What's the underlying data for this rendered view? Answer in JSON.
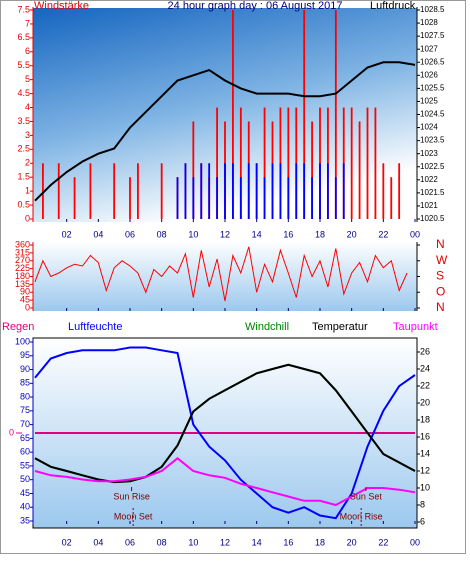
{
  "chart_data": [
    {
      "type": "bar",
      "title": "24 hour graph day : 06 August 2017",
      "y_label": "Windstärke",
      "y2_label": "Luftdruck",
      "x": [
        0,
        0.5,
        1,
        1.5,
        2,
        2.5,
        3,
        3.5,
        4,
        4.5,
        5,
        5.5,
        6,
        6.5,
        7,
        7.5,
        8,
        8.5,
        9,
        9.5,
        10,
        10.5,
        11,
        11.5,
        12,
        12.5,
        13,
        13.5,
        14,
        14.5,
        15,
        15.5,
        16,
        16.5,
        17,
        17.5,
        18,
        18.5,
        19,
        19.5,
        20,
        20.5,
        21,
        21.5,
        22,
        22.5,
        23,
        23.5
      ],
      "xlim": [
        0,
        24
      ],
      "xticks": [
        {
          "value": 2,
          "label": "02"
        },
        {
          "value": 4,
          "label": "04"
        },
        {
          "value": 6,
          "label": "06"
        },
        {
          "value": 8,
          "label": "08"
        },
        10,
        12,
        14,
        16,
        18,
        20,
        22,
        {
          "value": 24,
          "label": "00"
        }
      ],
      "ylim": [
        0,
        7.5
      ],
      "yticks": [
        0,
        0.5,
        1,
        1.5,
        2,
        2.5,
        3,
        3.5,
        4,
        4.5,
        5,
        5.5,
        6,
        6.5,
        7,
        7.5
      ],
      "y2lim": [
        1020.5,
        1028.5
      ],
      "y2ticks": [
        1020.5,
        1021,
        1021.5,
        1022,
        1022.5,
        1023,
        1023.5,
        1024,
        1024.5,
        1025,
        1025.5,
        1026,
        1026.5,
        1027,
        1027.5,
        1028,
        1028.5
      ],
      "series": [
        {
          "color": "#ff0000",
          "values": [
            0,
            2,
            0,
            2,
            0,
            1.5,
            0,
            2,
            0,
            0,
            2,
            0,
            1.5,
            2,
            0,
            0,
            2,
            0,
            1.5,
            2,
            3.5,
            2,
            1.5,
            4,
            3.5,
            7.5,
            4,
            3.5,
            2,
            4,
            3.5,
            4,
            4,
            4,
            7.5,
            3.5,
            4,
            4,
            7.5,
            4,
            4,
            3.5,
            4,
            4,
            2,
            1.5,
            2,
            0
          ]
        },
        {
          "color": "#0000ff",
          "values": [
            0,
            0,
            0,
            0,
            0,
            0,
            0,
            0,
            0,
            0,
            0,
            0,
            0,
            0,
            0,
            0,
            0,
            0,
            1.5,
            2,
            1.5,
            2,
            2,
            1.5,
            2,
            2,
            1.5,
            2,
            2,
            1.5,
            2,
            2,
            1.5,
            2,
            2,
            1.5,
            2,
            2,
            1.5,
            2,
            0,
            0,
            0,
            0,
            0,
            0,
            0,
            0
          ]
        },
        {
          "type": "line",
          "axis": "y2",
          "color": "#000000",
          "x": [
            0,
            1,
            2,
            3,
            4,
            5,
            6,
            7,
            8,
            9,
            10,
            11,
            12,
            13,
            14,
            15,
            16,
            17,
            18,
            19,
            20,
            21,
            22,
            23,
            24
          ],
          "values": [
            1021.2,
            1021.8,
            1022.3,
            1022.7,
            1023,
            1023.2,
            1024,
            1024.6,
            1025.2,
            1025.8,
            1026,
            1026.2,
            1025.8,
            1025.5,
            1025.3,
            1025.3,
            1025.3,
            1025.2,
            1025.2,
            1025.3,
            1025.8,
            1026.3,
            1026.5,
            1026.5,
            1026.4
          ]
        }
      ]
    },
    {
      "type": "line",
      "x": [
        0,
        0.5,
        1,
        1.5,
        2,
        2.5,
        3,
        3.5,
        4,
        4.5,
        5,
        5.5,
        6,
        6.5,
        7,
        7.5,
        8,
        8.5,
        9,
        9.5,
        10,
        10.5,
        11,
        11.5,
        12,
        12.5,
        13,
        13.5,
        14,
        14.5,
        15,
        15.5,
        16,
        16.5,
        17,
        17.5,
        18,
        18.5,
        19,
        19.5,
        20,
        20.5,
        21,
        21.5,
        22,
        22.5,
        23,
        23.5
      ],
      "xlim": [
        0,
        24
      ],
      "xticks": [
        {
          "value": 2,
          "label": "02"
        },
        {
          "value": 4,
          "label": "04"
        },
        {
          "value": 6,
          "label": "06"
        },
        {
          "value": 8,
          "label": "08"
        },
        10,
        12,
        14,
        16,
        18,
        20,
        22,
        {
          "value": 24,
          "label": "00"
        }
      ],
      "ylim": [
        0,
        360
      ],
      "yticks": [
        0,
        45,
        90,
        135,
        180,
        225,
        270,
        315,
        360
      ],
      "y2lim": [
        0,
        360
      ],
      "y2ticks": [
        {
          "value": 0,
          "label": "N"
        },
        {
          "value": 90,
          "label": "O"
        },
        {
          "value": 180,
          "label": "S"
        },
        {
          "value": 270,
          "label": "W"
        },
        {
          "value": 360,
          "label": "N"
        }
      ],
      "series": [
        {
          "color": "#ff0000",
          "values": [
            150,
            270,
            180,
            200,
            230,
            250,
            240,
            300,
            260,
            100,
            230,
            270,
            240,
            200,
            90,
            220,
            180,
            240,
            200,
            310,
            60,
            330,
            120,
            280,
            40,
            300,
            200,
            350,
            90,
            250,
            150,
            330,
            200,
            60,
            300,
            180,
            270,
            120,
            340,
            80,
            200,
            260,
            150,
            300,
            230,
            270,
            100,
            200
          ]
        }
      ]
    },
    {
      "type": "line",
      "x": [
        0,
        1,
        2,
        3,
        4,
        5,
        6,
        7,
        8,
        9,
        10,
        11,
        12,
        13,
        14,
        15,
        16,
        17,
        18,
        19,
        20,
        21,
        22,
        23,
        24
      ],
      "xlim": [
        0,
        24
      ],
      "xticks": [
        {
          "value": 2,
          "label": "02"
        },
        {
          "value": 4,
          "label": "04"
        },
        {
          "value": 6,
          "label": "06"
        },
        {
          "value": 8,
          "label": "08"
        },
        10,
        12,
        14,
        16,
        18,
        20,
        22,
        {
          "value": 24,
          "label": "00"
        }
      ],
      "ylim": [
        35,
        100
      ],
      "yticks": [
        35,
        40,
        45,
        50,
        55,
        60,
        65,
        70,
        75,
        80,
        85,
        90,
        95,
        100
      ],
      "y2lim": [
        6,
        26
      ],
      "y2ticks": [
        6,
        8,
        10,
        12,
        14,
        16,
        18,
        20,
        22,
        24,
        26
      ],
      "y3lim": [
        -1,
        1
      ],
      "y3ticks": [
        0
      ],
      "series": [
        {
          "name": "Regen",
          "color": "#e0007f",
          "axis": "y3",
          "values": [
            0,
            0,
            0,
            0,
            0,
            0,
            0,
            0,
            0,
            0,
            0,
            0,
            0,
            0,
            0,
            0,
            0,
            0,
            0,
            0,
            0,
            0,
            0,
            0,
            0
          ]
        },
        {
          "name": "Luftfeuchte",
          "color": "#0000ff",
          "values": [
            87,
            94,
            96,
            97,
            97,
            97,
            98,
            98,
            97,
            96,
            70,
            62,
            57,
            50,
            45,
            40,
            38,
            40,
            37,
            36,
            45,
            62,
            75,
            84,
            88
          ]
        },
        {
          "name": "Windchill",
          "color": "#008000",
          "axis": "y2",
          "values": [
            13.5,
            12.5,
            12,
            11.5,
            11,
            10.7,
            10.8,
            11.3,
            12.5,
            15,
            19,
            20.5,
            21.5,
            22.5,
            23.5,
            24,
            24.5,
            24,
            23.5,
            21.5,
            19,
            16.5,
            14,
            13,
            12
          ]
        },
        {
          "name": "Temperatur",
          "color": "#000000",
          "axis": "y2",
          "values": [
            13.5,
            12.5,
            12,
            11.5,
            11,
            10.7,
            10.8,
            11.3,
            12.5,
            15,
            19,
            20.5,
            21.5,
            22.5,
            23.5,
            24,
            24.5,
            24,
            23.5,
            21.5,
            19,
            16.5,
            14,
            13,
            12
          ]
        },
        {
          "name": "Taupunkt",
          "color": "#ff00ff",
          "axis": "y2",
          "values": [
            12,
            11.5,
            11.3,
            11,
            10.8,
            10.8,
            11,
            11.3,
            12,
            13.5,
            12,
            11.5,
            11.2,
            10.5,
            10,
            9.5,
            9,
            8.5,
            8.5,
            8,
            9,
            10,
            10,
            9.8,
            9.5
          ]
        }
      ],
      "annotations": [
        {
          "text": "Sun Rise",
          "x": 6.1
        },
        {
          "text": "Sun Set",
          "x": 20.9
        },
        {
          "text": "Moon Set",
          "x": 6.2
        },
        {
          "text": "Moon Rise",
          "x": 20.6
        }
      ]
    }
  ]
}
